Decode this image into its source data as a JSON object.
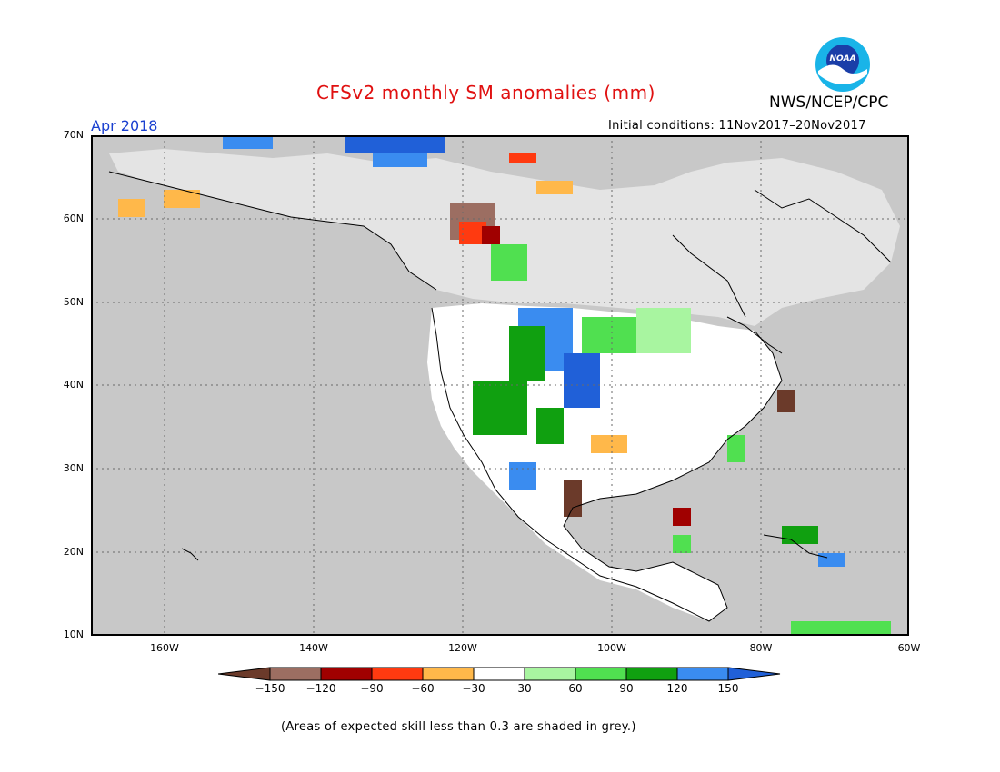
{
  "title": "CFSv2 monthly SM anomalies (mm)",
  "agency": "NWS/NCEP/CPC",
  "logo_text": "NOAA",
  "month": "Apr 2018",
  "initial_conditions": "Initial conditions: 11Nov2017–20Nov2017",
  "lat_labels": [
    "70N",
    "60N",
    "50N",
    "40N",
    "30N",
    "20N",
    "10N"
  ],
  "lon_labels": [
    "160W",
    "140W",
    "120W",
    "100W",
    "80W",
    "60W"
  ],
  "colorbar": {
    "labels": [
      "−150",
      "−120",
      "−90",
      "−60",
      "−30",
      "30",
      "60",
      "90",
      "120",
      "150"
    ],
    "colors": [
      "#6b3a2a",
      "#9c6e62",
      "#a00000",
      "#ff3a10",
      "#ffb84a",
      "#ffffff",
      "#a8f5a0",
      "#50e050",
      "#10a010",
      "#3a8cf0",
      "#2060d8"
    ]
  },
  "note": "(Areas of expected skill less than 0.3 are shaded in grey.)",
  "colors": {
    "title": "#e01010",
    "month": "#1a40d0",
    "land": "#c8c8c8",
    "ocean": "#c8c8c8"
  }
}
